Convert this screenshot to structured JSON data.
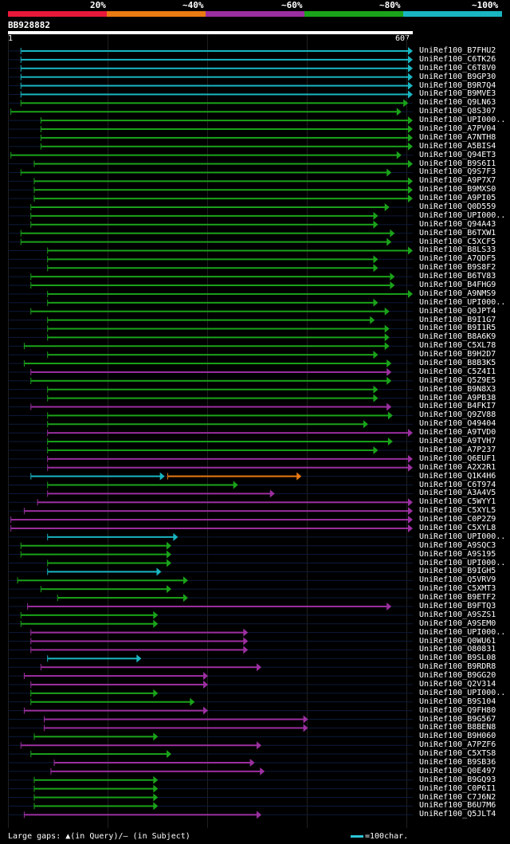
{
  "scale": {
    "labels": [
      "20%",
      "~40%",
      "~60%",
      "~80%",
      "~100%"
    ],
    "colors": [
      "#e8183a",
      "#ea7a12",
      "#9b2fa0",
      "#1aa31a",
      "#19b6c2"
    ]
  },
  "query": {
    "id": "BB928882",
    "start": "1",
    "end": "607",
    "length": 607
  },
  "footer": {
    "text": "Large gaps: ▲(in Query)/– (in Subject)",
    "legend": "=100char."
  },
  "hits": [
    {
      "name": "UniRef100_B7FHU2",
      "c": 4,
      "s": 20,
      "e": 607
    },
    {
      "name": "UniRef100_C6TK26",
      "c": 4,
      "s": 20,
      "e": 607
    },
    {
      "name": "UniRef100_C6T8V0",
      "c": 4,
      "s": 20,
      "e": 607
    },
    {
      "name": "UniRef100_B9GP30",
      "c": 4,
      "s": 20,
      "e": 607
    },
    {
      "name": "UniRef100_B9R7Q4",
      "c": 4,
      "s": 20,
      "e": 607
    },
    {
      "name": "UniRef100_B9MVE3",
      "c": 4,
      "s": 20,
      "e": 607
    },
    {
      "name": "UniRef100_Q9LN63",
      "c": 3,
      "s": 20,
      "e": 600
    },
    {
      "name": "UniRef100_Q8S307",
      "c": 3,
      "s": 5,
      "e": 590
    },
    {
      "name": "UniRef100_UPI000..",
      "c": 3,
      "s": 50,
      "e": 607
    },
    {
      "name": "UniRef100_A7PV04",
      "c": 3,
      "s": 50,
      "e": 607
    },
    {
      "name": "UniRef100_A7NTH8",
      "c": 3,
      "s": 50,
      "e": 607
    },
    {
      "name": "UniRef100_A5BIS4",
      "c": 3,
      "s": 50,
      "e": 607
    },
    {
      "name": "UniRef100_Q94ET3",
      "c": 3,
      "s": 5,
      "e": 590
    },
    {
      "name": "UniRef100_B9S6I1",
      "c": 3,
      "s": 40,
      "e": 607
    },
    {
      "name": "UniRef100_Q9S7F3",
      "c": 3,
      "s": 20,
      "e": 575
    },
    {
      "name": "UniRef100_A9P7X7",
      "c": 3,
      "s": 40,
      "e": 607
    },
    {
      "name": "UniRef100_B9MXS0",
      "c": 3,
      "s": 40,
      "e": 607
    },
    {
      "name": "UniRef100_A9PI05",
      "c": 3,
      "s": 40,
      "e": 607
    },
    {
      "name": "UniRef100_Q0D559",
      "c": 3,
      "s": 35,
      "e": 572
    },
    {
      "name": "UniRef100_UPI000..",
      "c": 3,
      "s": 35,
      "e": 555
    },
    {
      "name": "UniRef100_Q94A43",
      "c": 3,
      "s": 35,
      "e": 555
    },
    {
      "name": "UniRef100_B6TXW1",
      "c": 3,
      "s": 20,
      "e": 580
    },
    {
      "name": "UniRef100_C5XCF5",
      "c": 3,
      "s": 20,
      "e": 575
    },
    {
      "name": "UniRef100_B8LS33",
      "c": 3,
      "s": 60,
      "e": 607
    },
    {
      "name": "UniRef100_A7QDF5",
      "c": 3,
      "s": 60,
      "e": 555
    },
    {
      "name": "UniRef100_B9S8F2",
      "c": 3,
      "s": 60,
      "e": 555
    },
    {
      "name": "UniRef100_B6TV83",
      "c": 3,
      "s": 35,
      "e": 580
    },
    {
      "name": "UniRef100_B4FHG9",
      "c": 3,
      "s": 35,
      "e": 580
    },
    {
      "name": "UniRef100_A9NMS9",
      "c": 3,
      "s": 60,
      "e": 607
    },
    {
      "name": "UniRef100_UPI000..",
      "c": 3,
      "s": 60,
      "e": 555
    },
    {
      "name": "UniRef100_Q0JPT4",
      "c": 3,
      "s": 35,
      "e": 572
    },
    {
      "name": "UniRef100_B9I1G7",
      "c": 3,
      "s": 60,
      "e": 550
    },
    {
      "name": "UniRef100_B9I1R5",
      "c": 3,
      "s": 60,
      "e": 572
    },
    {
      "name": "UniRef100_B8A6K9",
      "c": 3,
      "s": 60,
      "e": 572
    },
    {
      "name": "UniRef100_C5XL78",
      "c": 3,
      "s": 25,
      "e": 572
    },
    {
      "name": "UniRef100_B9H2D7",
      "c": 3,
      "s": 60,
      "e": 555
    },
    {
      "name": "UniRef100_B8B3K5",
      "c": 3,
      "s": 25,
      "e": 575
    },
    {
      "name": "UniRef100_C5Z4I1",
      "c": 2,
      "s": 35,
      "e": 575
    },
    {
      "name": "UniRef100_Q5Z9E5",
      "c": 3,
      "s": 35,
      "e": 575
    },
    {
      "name": "UniRef100_B9N8X3",
      "c": 3,
      "s": 60,
      "e": 555
    },
    {
      "name": "UniRef100_A9PB38",
      "c": 3,
      "s": 60,
      "e": 555
    },
    {
      "name": "UniRef100_B4FKI7",
      "c": 2,
      "s": 35,
      "e": 575
    },
    {
      "name": "UniRef100_Q9ZV88",
      "c": 3,
      "s": 60,
      "e": 577
    },
    {
      "name": "UniRef100_O49404",
      "c": 3,
      "s": 60,
      "e": 540
    },
    {
      "name": "UniRef100_A9TVD0",
      "c": 2,
      "s": 60,
      "e": 607
    },
    {
      "name": "UniRef100_A9TVH7",
      "c": 3,
      "s": 60,
      "e": 577
    },
    {
      "name": "UniRef100_A7P237",
      "c": 3,
      "s": 60,
      "e": 555
    },
    {
      "name": "UniRef100_Q6EUF1",
      "c": 2,
      "s": 60,
      "e": 607
    },
    {
      "name": "UniRef100_A2X2R1",
      "c": 2,
      "s": 60,
      "e": 607
    },
    {
      "name": "UniRef100_Q1K4H6",
      "c": 4,
      "s": 35,
      "e": 235,
      "s2": 240,
      "e2": 440,
      "c2": 1
    },
    {
      "name": "UniRef100_C6T974",
      "c": 3,
      "s": 60,
      "e": 345
    },
    {
      "name": "UniRef100_A3A4V5",
      "c": 2,
      "s": 60,
      "e": 400
    },
    {
      "name": "UniRef100_C5WYY1",
      "c": 2,
      "s": 45,
      "e": 607
    },
    {
      "name": "UniRef100_C5XYL5",
      "c": 2,
      "s": 25,
      "e": 607
    },
    {
      "name": "UniRef100_C0P2Z9",
      "c": 2,
      "s": 5,
      "e": 607
    },
    {
      "name": "UniRef100_C5XYL8",
      "c": 2,
      "s": 5,
      "e": 607
    },
    {
      "name": "UniRef100_UPI000..",
      "c": 4,
      "s": 60,
      "e": 255
    },
    {
      "name": "UniRef100_A9SQC3",
      "c": 3,
      "s": 20,
      "e": 245
    },
    {
      "name": "UniRef100_A9S195",
      "c": 3,
      "s": 20,
      "e": 245
    },
    {
      "name": "UniRef100_UPI000..",
      "c": 3,
      "s": 60,
      "e": 245
    },
    {
      "name": "UniRef100_B9IGH5",
      "c": 4,
      "s": 60,
      "e": 230
    },
    {
      "name": "UniRef100_Q5VRV9",
      "c": 3,
      "s": 15,
      "e": 270
    },
    {
      "name": "UniRef100_C5XMT3",
      "c": 3,
      "s": 50,
      "e": 245
    },
    {
      "name": "UniRef100_B9ETF2",
      "c": 3,
      "s": 75,
      "e": 270
    },
    {
      "name": "UniRef100_B9FTQ3",
      "c": 2,
      "s": 30,
      "e": 575
    },
    {
      "name": "UniRef100_A9SZS1",
      "c": 3,
      "s": 20,
      "e": 225
    },
    {
      "name": "UniRef100_A9SEM0",
      "c": 3,
      "s": 20,
      "e": 225
    },
    {
      "name": "UniRef100_UPI000..",
      "c": 2,
      "s": 35,
      "e": 360
    },
    {
      "name": "UniRef100_Q0WU61",
      "c": 2,
      "s": 35,
      "e": 360
    },
    {
      "name": "UniRef100_O80831",
      "c": 2,
      "s": 35,
      "e": 360
    },
    {
      "name": "UniRef100_B9SL08",
      "c": 4,
      "s": 60,
      "e": 200
    },
    {
      "name": "UniRef100_B9RDR8",
      "c": 2,
      "s": 50,
      "e": 380
    },
    {
      "name": "UniRef100_B9GG20",
      "c": 2,
      "s": 25,
      "e": 300
    },
    {
      "name": "UniRef100_Q2V314",
      "c": 2,
      "s": 35,
      "e": 300
    },
    {
      "name": "UniRef100_UPI000..",
      "c": 3,
      "s": 35,
      "e": 225
    },
    {
      "name": "UniRef100_B9S104",
      "c": 3,
      "s": 35,
      "e": 280
    },
    {
      "name": "UniRef100_Q9FH80",
      "c": 2,
      "s": 25,
      "e": 300
    },
    {
      "name": "UniRef100_B9G567",
      "c": 2,
      "s": 55,
      "e": 450
    },
    {
      "name": "UniRef100_B8BEN8",
      "c": 2,
      "s": 55,
      "e": 450
    },
    {
      "name": "UniRef100_B9H060",
      "c": 3,
      "s": 40,
      "e": 225
    },
    {
      "name": "UniRef100_A7PZF6",
      "c": 2,
      "s": 20,
      "e": 380
    },
    {
      "name": "UniRef100_C5XTS8",
      "c": 3,
      "s": 35,
      "e": 245
    },
    {
      "name": "UniRef100_B9SB36",
      "c": 2,
      "s": 70,
      "e": 370
    },
    {
      "name": "UniRef100_Q0E497",
      "c": 2,
      "s": 65,
      "e": 385
    },
    {
      "name": "UniRef100_B9GQ93",
      "c": 3,
      "s": 40,
      "e": 225
    },
    {
      "name": "UniRef100_C0P6I1",
      "c": 3,
      "s": 40,
      "e": 225
    },
    {
      "name": "UniRef100_C7J6N2",
      "c": 3,
      "s": 40,
      "e": 225
    },
    {
      "name": "UniRef100_B6U7M6",
      "c": 3,
      "s": 40,
      "e": 225
    },
    {
      "name": "UniRef100_Q5JLT4",
      "c": 2,
      "s": 25,
      "e": 380
    }
  ]
}
